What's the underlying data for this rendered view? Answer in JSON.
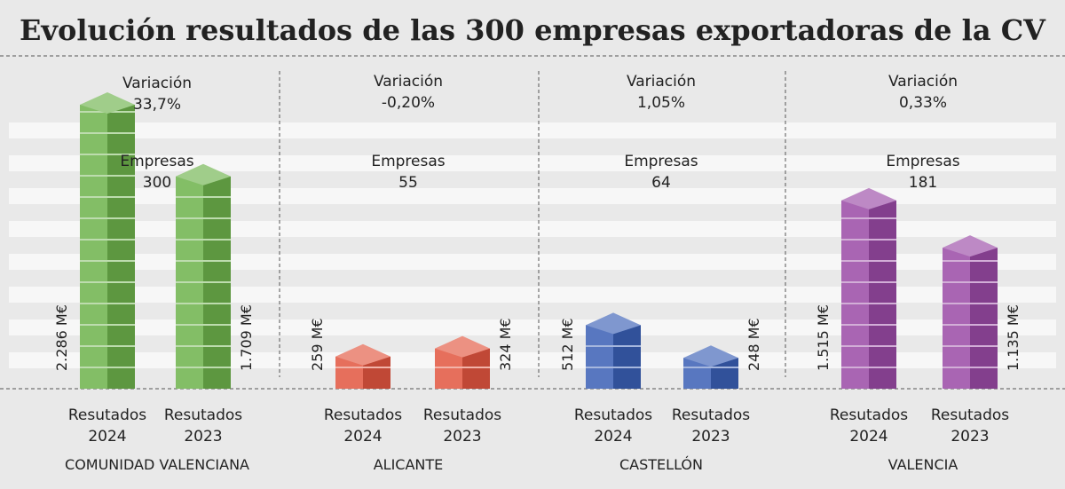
{
  "title": "Evolución resultados de las 300 empresas exportadoras de la CV",
  "chart_data": [
    {
      "type": "bar",
      "title": "COMUNIDAD VALENCIANA",
      "categories": [
        "Resutados 2024",
        "Resutados 2023"
      ],
      "values": [
        2286,
        1709
      ],
      "value_labels": [
        "2.286 M€",
        "1.709 M€"
      ],
      "color": "#6db24b",
      "annotations": {
        "variation_label": "Variación",
        "variation": "33,7%",
        "companies_label": "Empresas",
        "companies": 300
      }
    },
    {
      "type": "bar",
      "title": "ALICANTE",
      "categories": [
        "Resutados 2024",
        "Resutados 2023"
      ],
      "values": [
        259,
        324
      ],
      "value_labels": [
        "259 M€",
        "324 M€"
      ],
      "color": "#e2553f",
      "annotations": {
        "variation_label": "Variación",
        "variation": "-0,20%",
        "companies_label": "Empresas",
        "companies": 55
      }
    },
    {
      "type": "bar",
      "title": "CASTELLÓN",
      "categories": [
        "Resutados 2024",
        "Resutados 2023"
      ],
      "values": [
        512,
        248
      ],
      "value_labels": [
        "512 M€",
        "248 M€"
      ],
      "color": "#3a5fb5",
      "annotations": {
        "variation_label": "Variación",
        "variation": "1,05%",
        "companies_label": "Empresas",
        "companies": 64
      }
    },
    {
      "type": "bar",
      "title": "VALENCIA",
      "categories": [
        "Resutados 2024",
        "Resutados 2023"
      ],
      "values": [
        1515,
        1135
      ],
      "value_labels": [
        "1.515 M€",
        "1.135 M€"
      ],
      "color": "#9a4aa6",
      "annotations": {
        "variation_label": "Variación",
        "variation": "0,33%",
        "companies_label": "Empresas",
        "companies": 181
      }
    }
  ]
}
